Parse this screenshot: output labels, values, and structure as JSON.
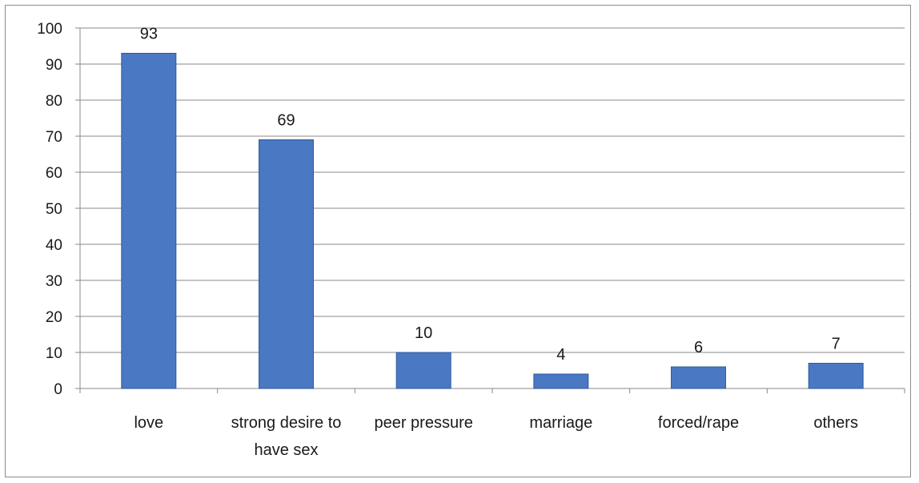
{
  "chart_data": {
    "type": "bar",
    "categories": [
      "love",
      "strong desire to have sex",
      "peer pressure",
      "marriage",
      "forced/rape",
      "others"
    ],
    "category_lines": [
      [
        "love"
      ],
      [
        "strong desire to",
        "have sex"
      ],
      [
        "peer pressure"
      ],
      [
        "marriage"
      ],
      [
        "forced/rape"
      ],
      [
        "others"
      ]
    ],
    "values": [
      93,
      69,
      10,
      4,
      6,
      7
    ],
    "data_labels": [
      "93",
      "69",
      "10",
      "4",
      "6",
      "7"
    ],
    "y_ticks": [
      "0",
      "10",
      "20",
      "30",
      "40",
      "50",
      "60",
      "70",
      "80",
      "90",
      "100"
    ],
    "ylim": [
      0,
      100
    ],
    "grid": true,
    "legend": "none",
    "bar_color": "#4a78c2",
    "bar_edge_color": "#2e5a9e",
    "grid_color": "#888888"
  }
}
